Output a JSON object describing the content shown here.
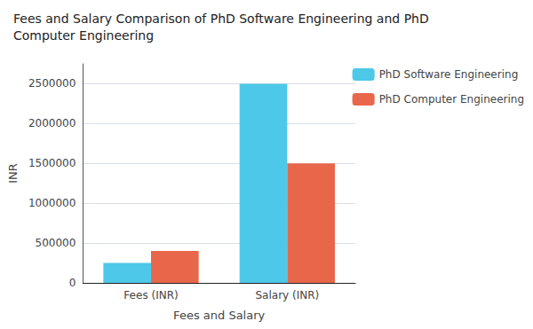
{
  "chart_data": {
    "type": "bar",
    "title": "Fees and Salary Comparison of PhD Software Engineering and PhD\nComputer Engineering",
    "categories": [
      "Fees (INR)",
      "Salary (INR)"
    ],
    "series": [
      {
        "name": "PhD Software Engineering",
        "color": "#4DC8E8",
        "values": [
          250000,
          2500000
        ]
      },
      {
        "name": "PhD Computer Engineering",
        "color": "#E8674A",
        "values": [
          400000,
          1500000
        ]
      }
    ],
    "xlabel": "Fees and Salary",
    "ylabel": "INR",
    "ylim": [
      0,
      2750000
    ],
    "yticks": [
      0,
      500000,
      1000000,
      1500000,
      2000000,
      2500000
    ],
    "grid": true,
    "legend": "right"
  }
}
